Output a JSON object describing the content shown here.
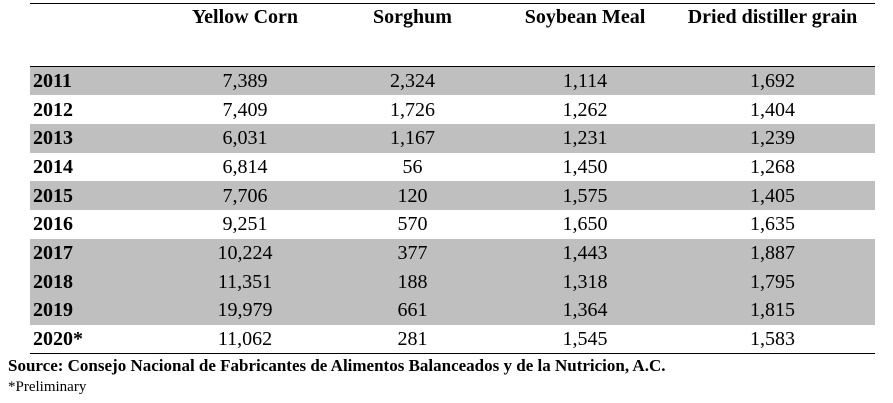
{
  "table": {
    "columns": [
      "Yellow Corn",
      "Sorghum",
      "Soybean Meal",
      "Dried distiller grain"
    ],
    "rows": [
      [
        "2011",
        "7,389",
        "2,324",
        "1,114",
        "1,692"
      ],
      [
        "2012",
        "7,409",
        "1,726",
        "1,262",
        "1,404"
      ],
      [
        "2013",
        "6,031",
        "1,167",
        "1,231",
        "1,239"
      ],
      [
        "2014",
        "6,814",
        "56",
        "1,450",
        "1,268"
      ],
      [
        "2015",
        "7,706",
        "120",
        "1,575",
        "1,405"
      ],
      [
        "2016",
        "9,251",
        "570",
        "1,650",
        "1,635"
      ],
      [
        "2017",
        "10,224",
        "377",
        "1,443",
        "1,887"
      ],
      [
        "2018",
        "11,351",
        "188",
        "1,318",
        "1,795"
      ],
      [
        "2019",
        "19,979",
        "661",
        "1,364",
        "1,815"
      ],
      [
        "2020*",
        "11,062",
        "281",
        "1,545",
        "1,583"
      ]
    ]
  },
  "footer": {
    "source": "Source:  Consejo Nacional de Fabricantes de Alimentos Balanceados y de la Nutricion, A.C.",
    "note": "*Preliminary"
  }
}
